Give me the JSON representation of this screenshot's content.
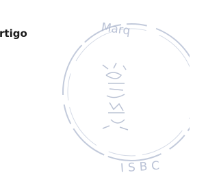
{
  "document": {
    "fragment_text": "rtigo",
    "stamp": {
      "top_text": "Marq",
      "bottom_text": "ISBC"
    }
  }
}
